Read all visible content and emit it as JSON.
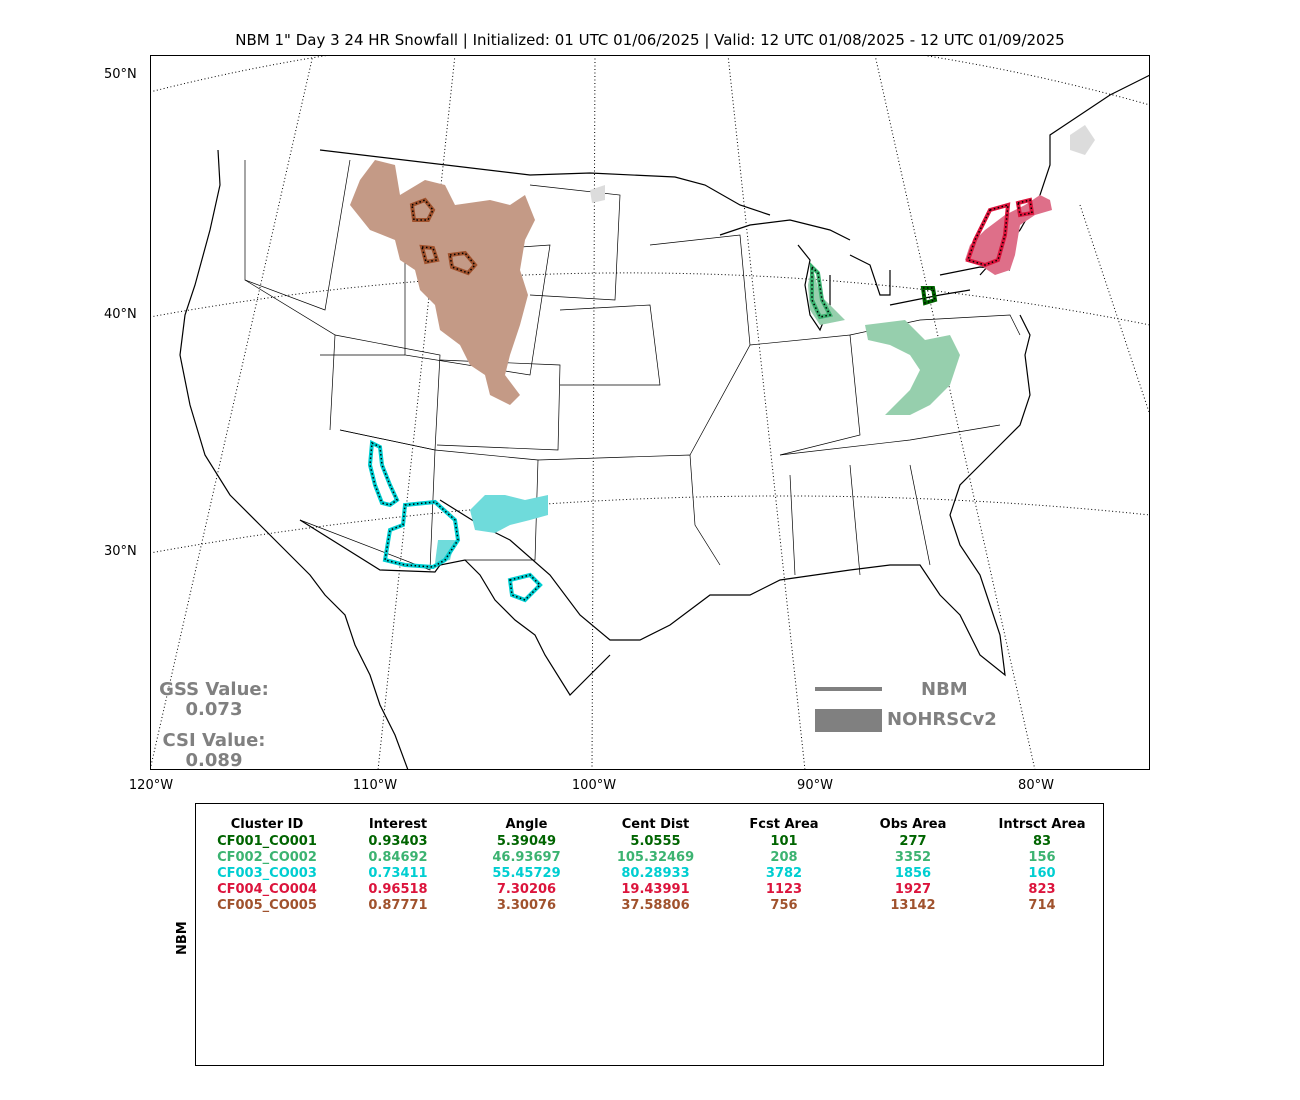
{
  "title": "NBM 1\" Day 3 24 HR Snowfall | Initialized: 01 UTC 01/06/2025 | Valid: 12 UTC 01/08/2025 - 12 UTC 01/09/2025",
  "axes": {
    "lat_labels": [
      "50°N",
      "40°N",
      "30°N"
    ],
    "lon_labels": [
      "120°W",
      "110°W",
      "100°W",
      "90°W",
      "80°W"
    ]
  },
  "scores": {
    "gss_label": "GSS Value:",
    "gss_value": "0.073",
    "csi_label": "CSI Value:",
    "csi_value": "0.089"
  },
  "legend": {
    "line_label": "NBM",
    "fill_label": "NOHRSCv2",
    "color": "#808080"
  },
  "table": {
    "side_label": "NBM",
    "headers": [
      "Cluster ID",
      "Interest",
      "Angle",
      "Cent Dist",
      "Fcst Area",
      "Obs Area",
      "Intrsct Area"
    ],
    "rows": [
      {
        "color": "#006400",
        "cells": [
          "CF001_CO001",
          "0.93403",
          "5.39049",
          "5.0555",
          "101",
          "277",
          "83"
        ]
      },
      {
        "color": "#3cb371",
        "cells": [
          "CF002_CO002",
          "0.84692",
          "46.93697",
          "105.32469",
          "208",
          "3352",
          "156"
        ]
      },
      {
        "color": "#00ced1",
        "cells": [
          "CF003_CO003",
          "0.73411",
          "55.45729",
          "80.28933",
          "3782",
          "1856",
          "160"
        ]
      },
      {
        "color": "#dc143c",
        "cells": [
          "CF004_CO004",
          "0.96518",
          "7.30206",
          "19.43991",
          "1123",
          "1927",
          "823"
        ]
      },
      {
        "color": "#a0522d",
        "cells": [
          "CF005_CO005",
          "0.87771",
          "3.30076",
          "37.58806",
          "756",
          "13142",
          "714"
        ]
      }
    ]
  },
  "map_colors": {
    "brown_fill": "#c49a86",
    "green_fill": "#96cfad",
    "cyan_fill": "#6fdbdb",
    "red_fill": "#de6f89",
    "gray_fill": "#dcdcdc",
    "dark_green": "#006400",
    "brown_outline": "#a0522d",
    "cyan_outline": "#00ced1",
    "red_outline": "#dc143c",
    "green_outline": "#3cb371"
  }
}
